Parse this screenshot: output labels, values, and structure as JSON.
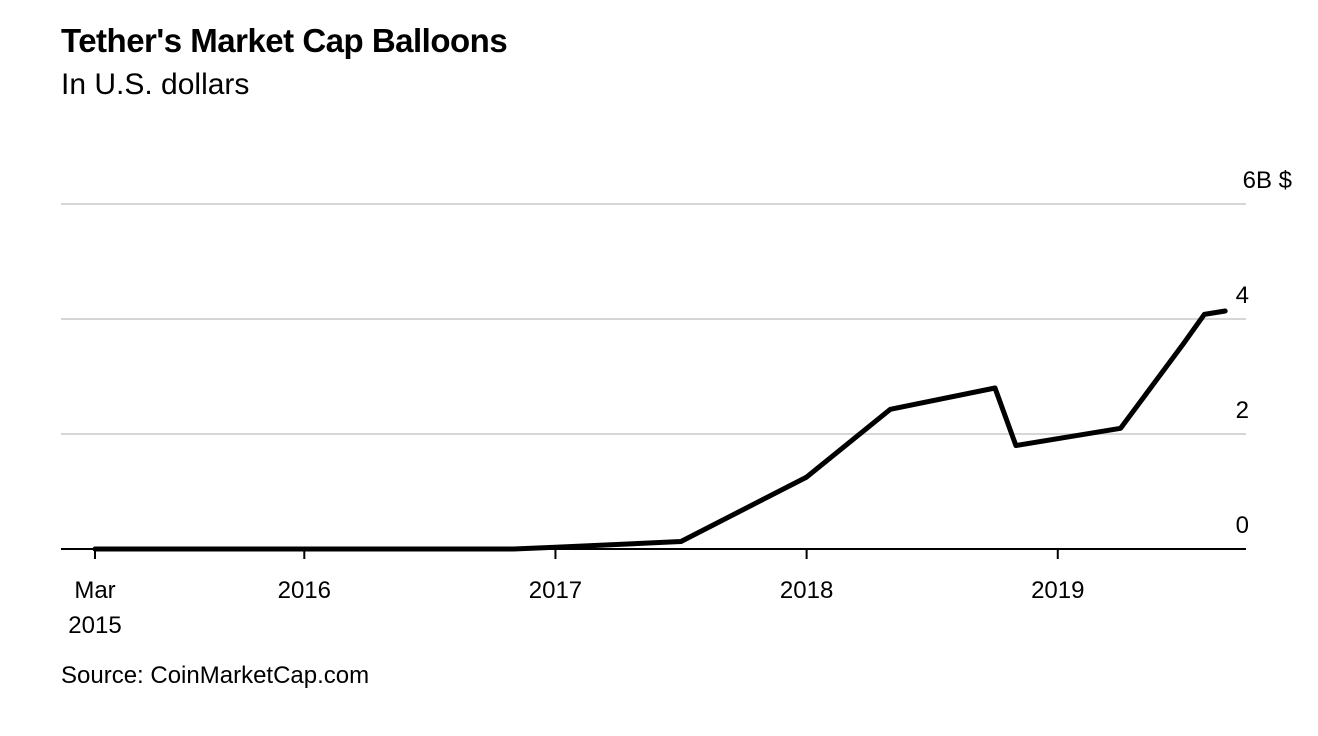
{
  "header": {
    "title": "Tether's Market Cap Balloons",
    "subtitle": "In U.S. dollars"
  },
  "footer": {
    "source": "Source: CoinMarketCap.com"
  },
  "chart_data": {
    "type": "line",
    "title": "Tether's Market Cap Balloons",
    "subtitle": "In U.S. dollars",
    "xlabel": "",
    "ylabel": "",
    "source": "Source: CoinMarketCap.com",
    "y_unit_label": "6B $",
    "ylim": [
      0,
      6
    ],
    "xlim": [
      "2015-03",
      "2019-12"
    ],
    "y_ticks": [
      {
        "value": 0,
        "label": "0"
      },
      {
        "value": 2,
        "label": "2"
      },
      {
        "value": 4,
        "label": "4"
      },
      {
        "value": 6,
        "label": "6B $"
      }
    ],
    "x_ticks": [
      {
        "date": "2015-03",
        "label": [
          "Mar",
          "2015"
        ]
      },
      {
        "date": "2016-01",
        "label": [
          "2016"
        ]
      },
      {
        "date": "2017-01",
        "label": [
          "2017"
        ]
      },
      {
        "date": "2018-01",
        "label": [
          "2018"
        ]
      },
      {
        "date": "2019-01",
        "label": [
          "2019"
        ]
      }
    ],
    "grid": true,
    "series": [
      {
        "color": "#000000",
        "points": [
          {
            "x": "2015-03",
            "y": 0.0
          },
          {
            "x": "2016-01",
            "y": 0.0
          },
          {
            "x": "2016-11",
            "y": 0.0
          },
          {
            "x": "2017-01",
            "y": 0.03
          },
          {
            "x": "2017-07",
            "y": 0.13
          },
          {
            "x": "2018-01",
            "y": 1.25
          },
          {
            "x": "2018-05",
            "y": 2.43
          },
          {
            "x": "2018-10",
            "y": 2.8
          },
          {
            "x": "2018-11",
            "y": 1.8
          },
          {
            "x": "2019-04",
            "y": 2.1
          },
          {
            "x": "2019-07",
            "y": 3.57
          },
          {
            "x": "2019-08",
            "y": 4.08
          },
          {
            "x": "2019-09",
            "y": 4.14
          }
        ]
      }
    ]
  }
}
